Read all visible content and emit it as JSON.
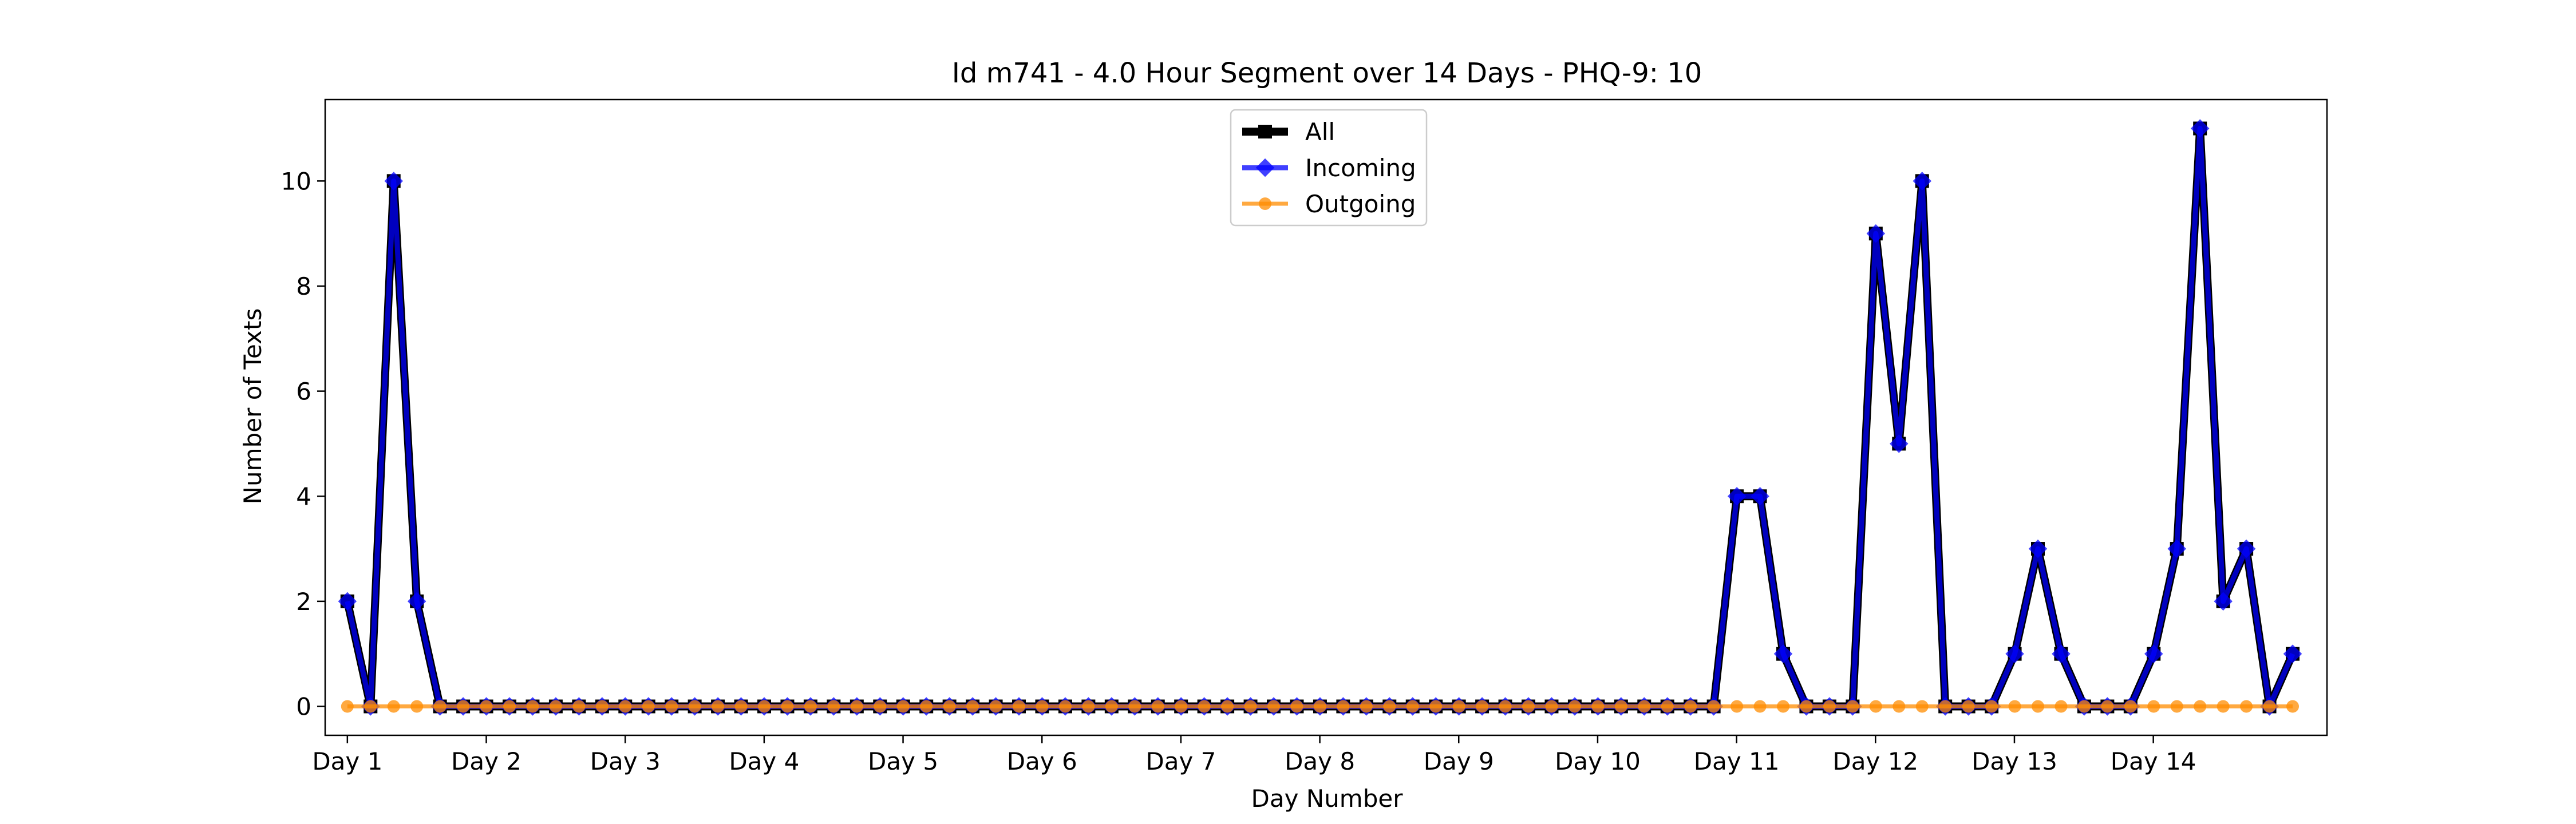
{
  "chart_data": {
    "type": "line",
    "title": "Id m741 - 4.0 Hour Segment over 14 Days - PHQ-9: 10",
    "xlabel": "Day Number",
    "ylabel": "Number of Texts",
    "ylim": [
      -0.55,
      11.55
    ],
    "yticks": [
      0,
      2,
      4,
      6,
      8,
      10
    ],
    "xlim": [
      -0.16,
      14.25
    ],
    "xticks": [
      {
        "pos": 0,
        "label": "Day 1"
      },
      {
        "pos": 1,
        "label": "Day 2"
      },
      {
        "pos": 2,
        "label": "Day 3"
      },
      {
        "pos": 3,
        "label": "Day 4"
      },
      {
        "pos": 4,
        "label": "Day 5"
      },
      {
        "pos": 5,
        "label": "Day 6"
      },
      {
        "pos": 6,
        "label": "Day 7"
      },
      {
        "pos": 7,
        "label": "Day 8"
      },
      {
        "pos": 8,
        "label": "Day 9"
      },
      {
        "pos": 9,
        "label": "Day 10"
      },
      {
        "pos": 10,
        "label": "Day 11"
      },
      {
        "pos": 11,
        "label": "Day 12"
      },
      {
        "pos": 12,
        "label": "Day 13"
      },
      {
        "pos": 13,
        "label": "Day 14"
      }
    ],
    "grid": false,
    "legend_position": "top-center",
    "x_step": 0.1667,
    "series": [
      {
        "name": "All",
        "color": "#000000",
        "marker": "square",
        "values": [
          2,
          0,
          10,
          2,
          0,
          0,
          0,
          0,
          0,
          0,
          0,
          0,
          0,
          0,
          0,
          0,
          0,
          0,
          0,
          0,
          0,
          0,
          0,
          0,
          0,
          0,
          0,
          0,
          0,
          0,
          0,
          0,
          0,
          0,
          0,
          0,
          0,
          0,
          0,
          0,
          0,
          0,
          0,
          0,
          0,
          0,
          0,
          0,
          0,
          0,
          0,
          0,
          0,
          0,
          0,
          0,
          0,
          0,
          0,
          0,
          4,
          4,
          1,
          0,
          0,
          0,
          9,
          5,
          10,
          0,
          0,
          0,
          1,
          3,
          1,
          0,
          0,
          0,
          1,
          3,
          11,
          2,
          3,
          0,
          1
        ]
      },
      {
        "name": "Incoming",
        "color": "#0000ff",
        "marker": "diamond",
        "values": [
          2,
          0,
          10,
          2,
          0,
          0,
          0,
          0,
          0,
          0,
          0,
          0,
          0,
          0,
          0,
          0,
          0,
          0,
          0,
          0,
          0,
          0,
          0,
          0,
          0,
          0,
          0,
          0,
          0,
          0,
          0,
          0,
          0,
          0,
          0,
          0,
          0,
          0,
          0,
          0,
          0,
          0,
          0,
          0,
          0,
          0,
          0,
          0,
          0,
          0,
          0,
          0,
          0,
          0,
          0,
          0,
          0,
          0,
          0,
          0,
          4,
          4,
          1,
          0,
          0,
          0,
          9,
          5,
          10,
          0,
          0,
          0,
          1,
          3,
          1,
          0,
          0,
          0,
          1,
          3,
          11,
          2,
          3,
          0,
          1
        ]
      },
      {
        "name": "Outgoing",
        "color": "#ff8c00",
        "marker": "circle",
        "values": [
          0,
          0,
          0,
          0,
          0,
          0,
          0,
          0,
          0,
          0,
          0,
          0,
          0,
          0,
          0,
          0,
          0,
          0,
          0,
          0,
          0,
          0,
          0,
          0,
          0,
          0,
          0,
          0,
          0,
          0,
          0,
          0,
          0,
          0,
          0,
          0,
          0,
          0,
          0,
          0,
          0,
          0,
          0,
          0,
          0,
          0,
          0,
          0,
          0,
          0,
          0,
          0,
          0,
          0,
          0,
          0,
          0,
          0,
          0,
          0,
          0,
          0,
          0,
          0,
          0,
          0,
          0,
          0,
          0,
          0,
          0,
          0,
          0,
          0,
          0,
          0,
          0,
          0,
          0,
          0,
          0,
          0,
          0,
          0,
          0
        ]
      }
    ]
  }
}
